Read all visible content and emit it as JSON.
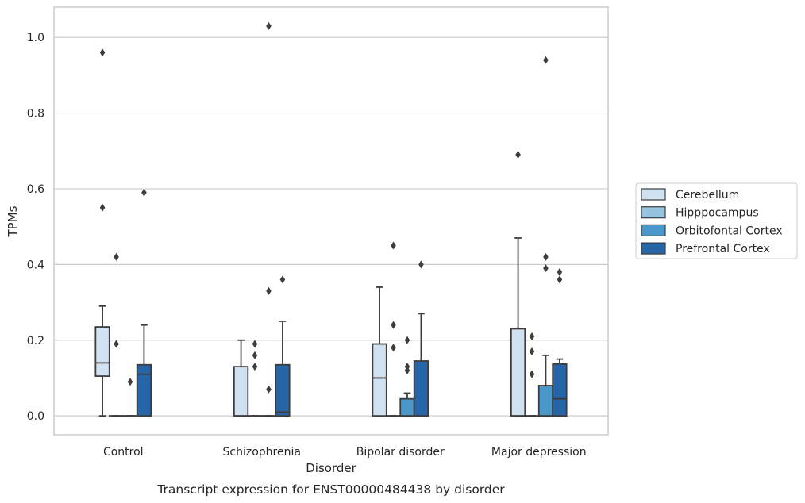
{
  "chart_data": {
    "type": "box",
    "title": "",
    "caption": "Transcript expression for ENST00000484438 by disorder",
    "xlabel": "Disorder",
    "ylabel": "TPMs",
    "ylim": [
      -0.05,
      1.08
    ],
    "yticks": [
      "0.0",
      "0.2",
      "0.4",
      "0.6",
      "0.8",
      "1.0"
    ],
    "grid": "horizontal",
    "legend_position": "right",
    "categories": [
      "Control",
      "Schizophrenia",
      "Bipolar disorder",
      "Major depression"
    ],
    "series": [
      {
        "name": "Cerebellum",
        "color": "#d0e1f2",
        "boxes": [
          {
            "q1": 0.105,
            "median": 0.14,
            "q3": 0.235,
            "whisker_low": 0.0,
            "whisker_high": 0.29,
            "outliers": [
              0.55,
              0.96
            ]
          },
          {
            "q1": 0.0,
            "median": 0.0,
            "q3": 0.13,
            "whisker_low": 0.0,
            "whisker_high": 0.2,
            "outliers": []
          },
          {
            "q1": 0.0,
            "median": 0.1,
            "q3": 0.19,
            "whisker_low": 0.0,
            "whisker_high": 0.34,
            "outliers": []
          },
          {
            "q1": 0.0,
            "median": 0.0,
            "q3": 0.23,
            "whisker_low": 0.0,
            "whisker_high": 0.47,
            "outliers": [
              0.69
            ]
          }
        ]
      },
      {
        "name": "Hipppocampus",
        "color": "#94c4df",
        "boxes": [
          {
            "q1": 0.0,
            "median": 0.0,
            "q3": 0.0,
            "whisker_low": 0.0,
            "whisker_high": 0.0,
            "outliers": [
              0.19,
              0.42
            ]
          },
          {
            "q1": 0.0,
            "median": 0.0,
            "q3": 0.0,
            "whisker_low": 0.0,
            "whisker_high": 0.0,
            "outliers": [
              0.13,
              0.16,
              0.19
            ]
          },
          {
            "q1": 0.0,
            "median": 0.0,
            "q3": 0.0,
            "whisker_low": 0.0,
            "whisker_high": 0.0,
            "outliers": [
              0.18,
              0.24,
              0.45
            ]
          },
          {
            "q1": 0.0,
            "median": 0.0,
            "q3": 0.0,
            "whisker_low": 0.0,
            "whisker_high": 0.0,
            "outliers": [
              0.11,
              0.17,
              0.21
            ]
          }
        ]
      },
      {
        "name": "Orbitofontal Cortex",
        "color": "#4a98c9",
        "boxes": [
          {
            "q1": 0.0,
            "median": 0.0,
            "q3": 0.0,
            "whisker_low": 0.0,
            "whisker_high": 0.0,
            "outliers": [
              0.09
            ]
          },
          {
            "q1": 0.0,
            "median": 0.0,
            "q3": 0.0,
            "whisker_low": 0.0,
            "whisker_high": 0.0,
            "outliers": [
              0.07,
              0.33,
              1.03
            ]
          },
          {
            "q1": 0.0,
            "median": 0.0,
            "q3": 0.045,
            "whisker_low": 0.0,
            "whisker_high": 0.06,
            "outliers": [
              0.12,
              0.13,
              0.2
            ]
          },
          {
            "q1": 0.0,
            "median": 0.0,
            "q3": 0.08,
            "whisker_low": 0.0,
            "whisker_high": 0.16,
            "outliers": [
              0.39,
              0.42,
              0.94
            ]
          }
        ]
      },
      {
        "name": "Prefrontal Cortex",
        "color": "#2666a8",
        "boxes": [
          {
            "q1": 0.0,
            "median": 0.11,
            "q3": 0.135,
            "whisker_low": 0.0,
            "whisker_high": 0.24,
            "outliers": [
              0.59
            ]
          },
          {
            "q1": 0.0,
            "median": 0.01,
            "q3": 0.135,
            "whisker_low": 0.0,
            "whisker_high": 0.25,
            "outliers": [
              0.36
            ]
          },
          {
            "q1": 0.0,
            "median": 0.0,
            "q3": 0.145,
            "whisker_low": 0.0,
            "whisker_high": 0.27,
            "outliers": [
              0.4
            ]
          },
          {
            "q1": 0.0,
            "median": 0.045,
            "q3": 0.137,
            "whisker_low": 0.0,
            "whisker_high": 0.15,
            "outliers": [
              0.36,
              0.38
            ]
          }
        ]
      }
    ]
  }
}
